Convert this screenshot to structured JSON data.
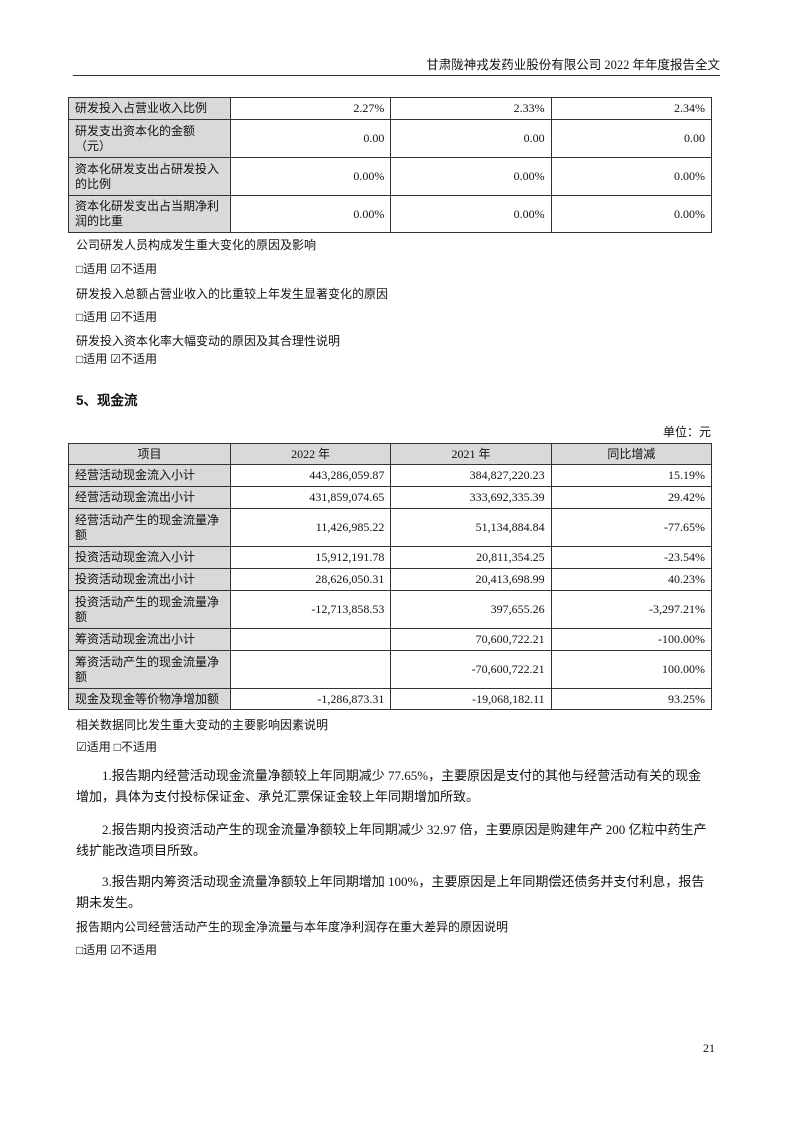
{
  "header": {
    "title": "甘肃陇神戎发药业股份有限公司 2022 年年度报告全文"
  },
  "rd_table": {
    "rows": [
      {
        "label": "研发投入占营业收入比例",
        "v": [
          "2.27%",
          "2.33%",
          "2.34%"
        ]
      },
      {
        "label": "研发支出资本化的金额（元）",
        "v": [
          "0.00",
          "0.00",
          "0.00"
        ]
      },
      {
        "label": "资本化研发支出占研发投入的比例",
        "v": [
          "0.00%",
          "0.00%",
          "0.00%"
        ]
      },
      {
        "label": "资本化研发支出占当期净利润的比重",
        "v": [
          "0.00%",
          "0.00%",
          "0.00%"
        ]
      }
    ]
  },
  "notes1": [
    {
      "q": "公司研发人员构成发生重大变化的原因及影响",
      "a": "□适用 ☑不适用"
    },
    {
      "q": "研发投入总额占营业收入的比重较上年发生显著变化的原因",
      "a": "□适用 ☑不适用"
    },
    {
      "q": "研发投入资本化率大幅变动的原因及其合理性说明",
      "a": "□适用 ☑不适用"
    }
  ],
  "section": {
    "title": "5、现金流",
    "unit": "单位：元"
  },
  "cash_table": {
    "headers": [
      "项目",
      "2022 年",
      "2021 年",
      "同比增减"
    ],
    "rows": [
      {
        "label": "经营活动现金流入小计",
        "v": [
          "443,286,059.87",
          "384,827,220.23",
          "15.19%"
        ]
      },
      {
        "label": "经营活动现金流出小计",
        "v": [
          "431,859,074.65",
          "333,692,335.39",
          "29.42%"
        ]
      },
      {
        "label": "经营活动产生的现金流量净额",
        "v": [
          "11,426,985.22",
          "51,134,884.84",
          "-77.65%"
        ]
      },
      {
        "label": "投资活动现金流入小计",
        "v": [
          "15,912,191.78",
          "20,811,354.25",
          "-23.54%"
        ]
      },
      {
        "label": "投资活动现金流出小计",
        "v": [
          "28,626,050.31",
          "20,413,698.99",
          "40.23%"
        ]
      },
      {
        "label": "投资活动产生的现金流量净额",
        "v": [
          "-12,713,858.53",
          "397,655.26",
          "-3,297.21%"
        ]
      },
      {
        "label": "筹资活动现金流出小计",
        "v": [
          "",
          "70,600,722.21",
          "-100.00%"
        ]
      },
      {
        "label": "筹资活动产生的现金流量净额",
        "v": [
          "",
          "-70,600,722.21",
          "100.00%"
        ]
      },
      {
        "label": "现金及现金等价物净增加额",
        "v": [
          "-1,286,873.31",
          "-19,068,182.11",
          "93.25%"
        ]
      }
    ]
  },
  "notes2": {
    "q": "相关数据同比发生重大变动的主要影响因素说明",
    "a": "☑适用 □不适用",
    "paras": [
      "1.报告期内经营活动现金流量净额较上年同期减少 77.65%，主要原因是支付的其他与经营活动有关的现金增加，具体为支付投标保证金、承兑汇票保证金较上年同期增加所致。",
      "2.报告期内投资活动产生的现金流量净额较上年同期减少 32.97 倍，主要原因是购建年产 200 亿粒中药生产线扩能改造项目所致。",
      "3.报告期内筹资活动现金流量净额较上年同期增加 100%，主要原因是上年同期偿还债务并支付利息，报告期未发生。"
    ],
    "q2": "报告期内公司经营活动产生的现金净流量与本年度净利润存在重大差异的原因说明",
    "a2": "□适用 ☑不适用"
  },
  "page_number": "21"
}
